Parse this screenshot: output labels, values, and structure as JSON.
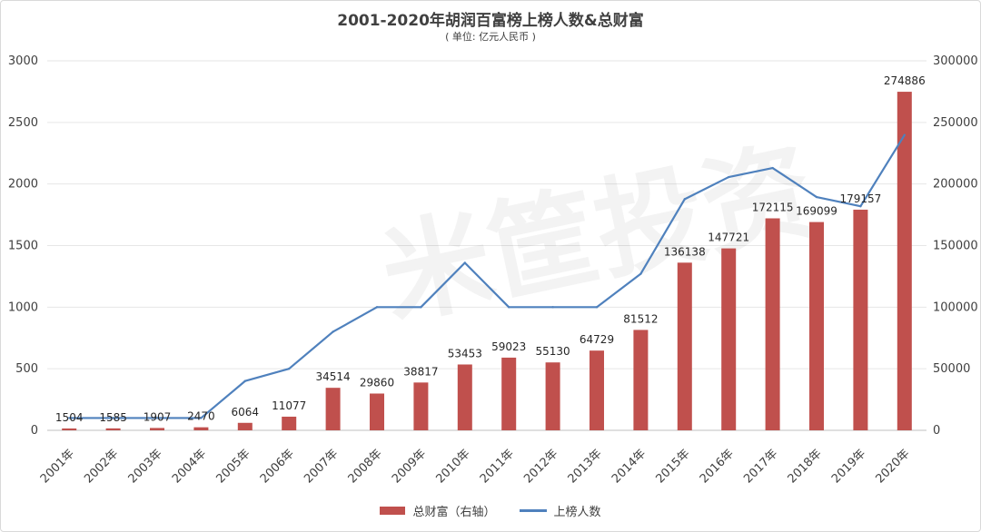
{
  "chart_data": {
    "type": "bar",
    "title": "2001-2020年胡润百富榜上榜人数&总财富",
    "subtitle": "( 单位: 亿元人民币 )",
    "categories": [
      "2001年",
      "2002年",
      "2003年",
      "2004年",
      "2005年",
      "2006年",
      "2007年",
      "2008年",
      "2009年",
      "2010年",
      "2011年",
      "2012年",
      "2013年",
      "2014年",
      "2015年",
      "2016年",
      "2017年",
      "2018年",
      "2019年",
      "2020年"
    ],
    "series": [
      {
        "name": "总财富（右轴）",
        "type": "bar",
        "axis": "right",
        "color": "#c0504d",
        "values": [
          1504,
          1585,
          1907,
          2470,
          6064,
          11077,
          34514,
          29860,
          38817,
          53453,
          59023,
          55130,
          64729,
          81512,
          136138,
          147721,
          172115,
          169099,
          179157,
          274886
        ]
      },
      {
        "name": "上榜人数",
        "type": "line",
        "axis": "left",
        "color": "#4f81bd",
        "values": [
          100,
          100,
          100,
          100,
          400,
          500,
          800,
          1000,
          1000,
          1360,
          1000,
          1000,
          1000,
          1271,
          1877,
          2056,
          2130,
          1894,
          1819,
          2398
        ]
      }
    ],
    "ylim_left": [
      0,
      3000
    ],
    "yticks_left": [
      0,
      500,
      1000,
      1500,
      2000,
      2500,
      3000
    ],
    "ylim_right": [
      0,
      300000
    ],
    "yticks_right": [
      0,
      50000,
      100000,
      150000,
      200000,
      250000,
      300000
    ],
    "legend_position": "bottom",
    "grid": true
  },
  "watermark": "米筐投资"
}
